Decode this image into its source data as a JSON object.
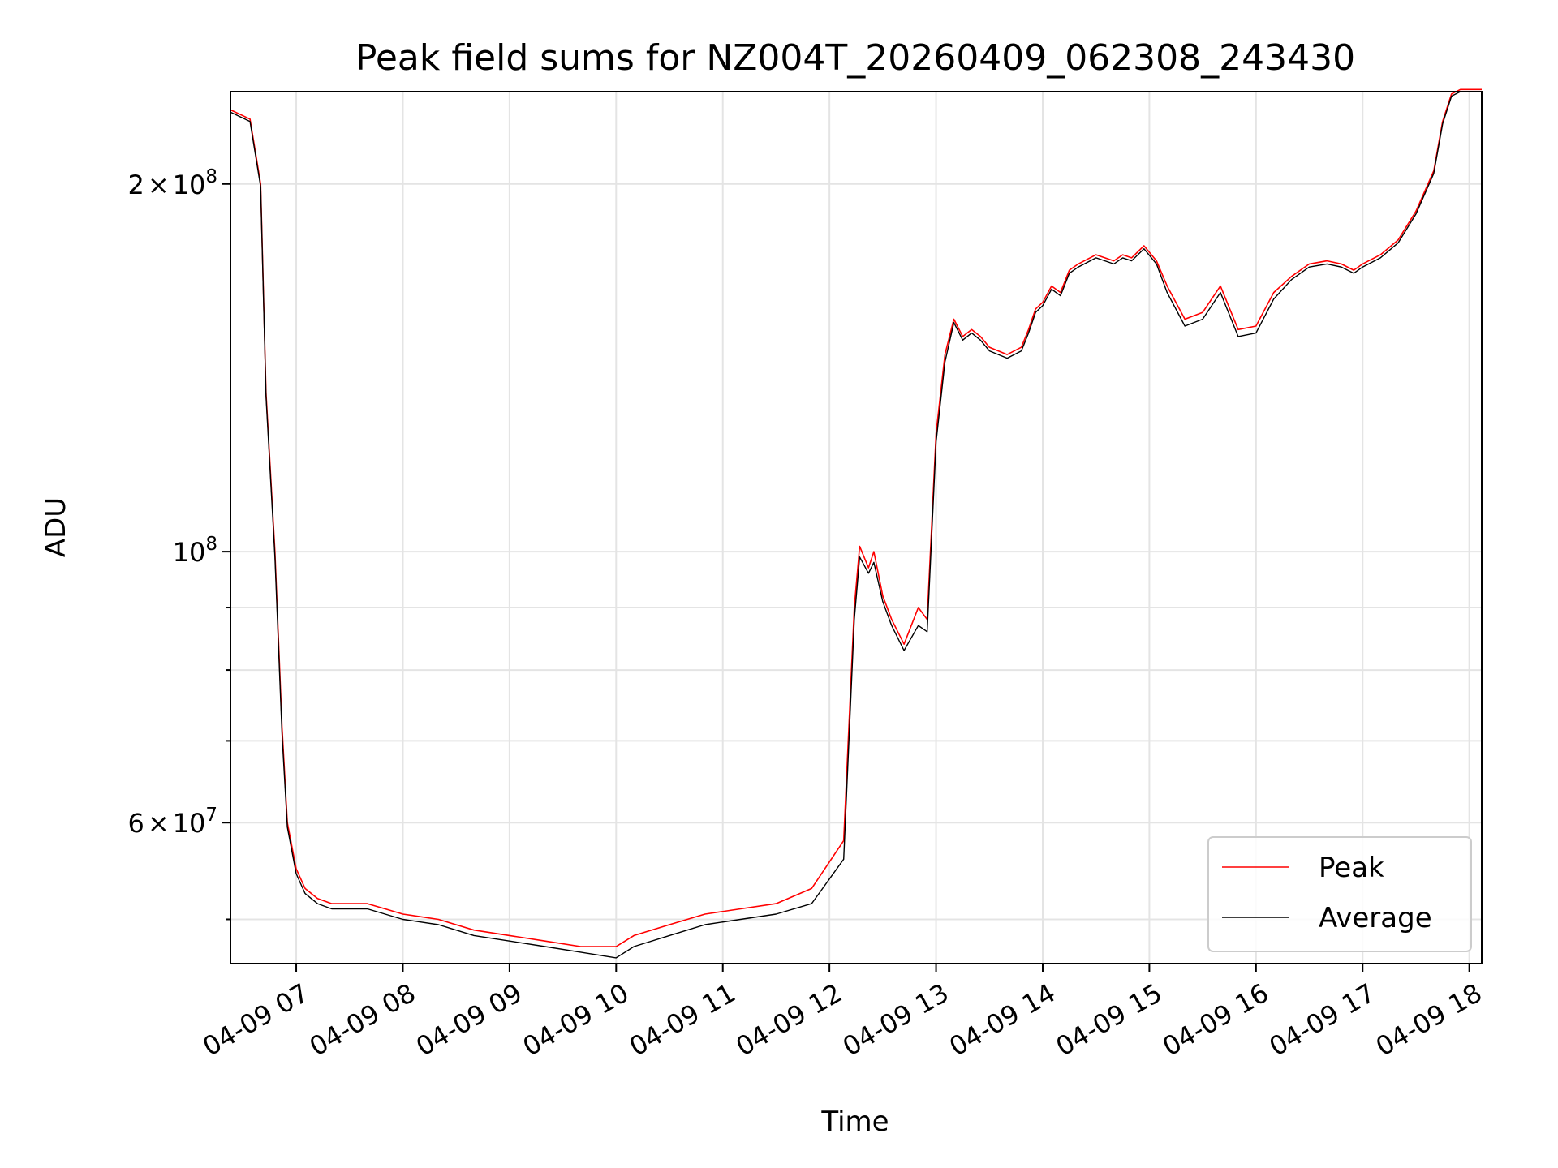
{
  "chart_data": {
    "type": "line",
    "title": "Peak field sums for NZ004T_20260409_062308_243430",
    "xlabel": "Time",
    "ylabel": "ADU",
    "y_scale": "log",
    "xlim": [
      "2026-04-09 06:23",
      "2026-04-09 18:07"
    ],
    "ylim": [
      46000000,
      238000000
    ],
    "grid": true,
    "legend_position": "lower-right",
    "x_ticks": [
      {
        "value": "2026-04-09 07:00",
        "label": "04-09 07"
      },
      {
        "value": "2026-04-09 08:00",
        "label": "04-09 08"
      },
      {
        "value": "2026-04-09 09:00",
        "label": "04-09 09"
      },
      {
        "value": "2026-04-09 10:00",
        "label": "04-09 10"
      },
      {
        "value": "2026-04-09 11:00",
        "label": "04-09 11"
      },
      {
        "value": "2026-04-09 12:00",
        "label": "04-09 12"
      },
      {
        "value": "2026-04-09 13:00",
        "label": "04-09 13"
      },
      {
        "value": "2026-04-09 14:00",
        "label": "04-09 14"
      },
      {
        "value": "2026-04-09 15:00",
        "label": "04-09 15"
      },
      {
        "value": "2026-04-09 16:00",
        "label": "04-09 16"
      },
      {
        "value": "2026-04-09 17:00",
        "label": "04-09 17"
      },
      {
        "value": "2026-04-09 18:00",
        "label": "04-09 18"
      }
    ],
    "y_major_ticks": [
      {
        "value": 60000000,
        "mantissa": "6",
        "times": "×",
        "base": "10",
        "exp": "7"
      },
      {
        "value": 100000000,
        "mantissa": "",
        "times": "",
        "base": "10",
        "exp": "8"
      },
      {
        "value": 200000000,
        "mantissa": "2",
        "times": "×",
        "base": "10",
        "exp": "8"
      }
    ],
    "y_minor_ticks": [
      50000000,
      70000000,
      80000000,
      90000000
    ],
    "series": [
      {
        "name": "Peak",
        "color": "#ff0000",
        "x": [
          "2026-04-09 06:23",
          "2026-04-09 06:34",
          "2026-04-09 06:40",
          "2026-04-09 06:43",
          "2026-04-09 06:48",
          "2026-04-09 06:52",
          "2026-04-09 06:55",
          "2026-04-09 07:00",
          "2026-04-09 07:05",
          "2026-04-09 07:12",
          "2026-04-09 07:20",
          "2026-04-09 07:30",
          "2026-04-09 07:40",
          "2026-04-09 07:50",
          "2026-04-09 08:00",
          "2026-04-09 08:20",
          "2026-04-09 08:40",
          "2026-04-09 09:00",
          "2026-04-09 09:20",
          "2026-04-09 09:40",
          "2026-04-09 10:00",
          "2026-04-09 10:10",
          "2026-04-09 10:30",
          "2026-04-09 10:50",
          "2026-04-09 11:10",
          "2026-04-09 11:30",
          "2026-04-09 11:50",
          "2026-04-09 12:08",
          "2026-04-09 12:14",
          "2026-04-09 12:17",
          "2026-04-09 12:22",
          "2026-04-09 12:25",
          "2026-04-09 12:30",
          "2026-04-09 12:35",
          "2026-04-09 12:42",
          "2026-04-09 12:50",
          "2026-04-09 12:55",
          "2026-04-09 13:00",
          "2026-04-09 13:05",
          "2026-04-09 13:10",
          "2026-04-09 13:15",
          "2026-04-09 13:20",
          "2026-04-09 13:25",
          "2026-04-09 13:30",
          "2026-04-09 13:40",
          "2026-04-09 13:48",
          "2026-04-09 13:52",
          "2026-04-09 13:56",
          "2026-04-09 14:00",
          "2026-04-09 14:05",
          "2026-04-09 14:10",
          "2026-04-09 14:15",
          "2026-04-09 14:20",
          "2026-04-09 14:30",
          "2026-04-09 14:40",
          "2026-04-09 14:45",
          "2026-04-09 14:50",
          "2026-04-09 14:57",
          "2026-04-09 15:04",
          "2026-04-09 15:10",
          "2026-04-09 15:20",
          "2026-04-09 15:30",
          "2026-04-09 15:40",
          "2026-04-09 15:50",
          "2026-04-09 16:00",
          "2026-04-09 16:10",
          "2026-04-09 16:20",
          "2026-04-09 16:30",
          "2026-04-09 16:40",
          "2026-04-09 16:48",
          "2026-04-09 16:55",
          "2026-04-09 17:00",
          "2026-04-09 17:10",
          "2026-04-09 17:20",
          "2026-04-09 17:30",
          "2026-04-09 17:40",
          "2026-04-09 17:45",
          "2026-04-09 17:50",
          "2026-04-09 17:55",
          "2026-04-09 18:00",
          "2026-04-09 18:07"
        ],
        "values": [
          230000000,
          226000000,
          200000000,
          135000000,
          100000000,
          72000000,
          60000000,
          55000000,
          53000000,
          52000000,
          51500000,
          51500000,
          51500000,
          51000000,
          50500000,
          50000000,
          49000000,
          48500000,
          48000000,
          47500000,
          47500000,
          48500000,
          49500000,
          50500000,
          51000000,
          51500000,
          53000000,
          58000000,
          90000000,
          101000000,
          97000000,
          100000000,
          92000000,
          88000000,
          84000000,
          90000000,
          88000000,
          125000000,
          145000000,
          155000000,
          150000000,
          152000000,
          150000000,
          147000000,
          145000000,
          147000000,
          152000000,
          158000000,
          160000000,
          165000000,
          163000000,
          170000000,
          172000000,
          175000000,
          173000000,
          175000000,
          174000000,
          178000000,
          173000000,
          165000000,
          155000000,
          157000000,
          165000000,
          152000000,
          153000000,
          163000000,
          168000000,
          172000000,
          173000000,
          172000000,
          170000000,
          172000000,
          175000000,
          180000000,
          190000000,
          205000000,
          225000000,
          237000000,
          239000000,
          239000000,
          239000000
        ]
      },
      {
        "name": "Average",
        "color": "#000000",
        "x": [
          "2026-04-09 06:23",
          "2026-04-09 06:34",
          "2026-04-09 06:40",
          "2026-04-09 06:43",
          "2026-04-09 06:48",
          "2026-04-09 06:52",
          "2026-04-09 06:55",
          "2026-04-09 07:00",
          "2026-04-09 07:05",
          "2026-04-09 07:12",
          "2026-04-09 07:20",
          "2026-04-09 07:30",
          "2026-04-09 07:40",
          "2026-04-09 07:50",
          "2026-04-09 08:00",
          "2026-04-09 08:20",
          "2026-04-09 08:40",
          "2026-04-09 09:00",
          "2026-04-09 09:20",
          "2026-04-09 09:40",
          "2026-04-09 10:00",
          "2026-04-09 10:10",
          "2026-04-09 10:30",
          "2026-04-09 10:50",
          "2026-04-09 11:10",
          "2026-04-09 11:30",
          "2026-04-09 11:50",
          "2026-04-09 12:08",
          "2026-04-09 12:14",
          "2026-04-09 12:17",
          "2026-04-09 12:22",
          "2026-04-09 12:25",
          "2026-04-09 12:30",
          "2026-04-09 12:35",
          "2026-04-09 12:42",
          "2026-04-09 12:50",
          "2026-04-09 12:55",
          "2026-04-09 13:00",
          "2026-04-09 13:05",
          "2026-04-09 13:10",
          "2026-04-09 13:15",
          "2026-04-09 13:20",
          "2026-04-09 13:25",
          "2026-04-09 13:30",
          "2026-04-09 13:40",
          "2026-04-09 13:48",
          "2026-04-09 13:52",
          "2026-04-09 13:56",
          "2026-04-09 14:00",
          "2026-04-09 14:05",
          "2026-04-09 14:10",
          "2026-04-09 14:15",
          "2026-04-09 14:20",
          "2026-04-09 14:30",
          "2026-04-09 14:40",
          "2026-04-09 14:45",
          "2026-04-09 14:50",
          "2026-04-09 14:57",
          "2026-04-09 15:04",
          "2026-04-09 15:10",
          "2026-04-09 15:20",
          "2026-04-09 15:30",
          "2026-04-09 15:40",
          "2026-04-09 15:50",
          "2026-04-09 16:00",
          "2026-04-09 16:10",
          "2026-04-09 16:20",
          "2026-04-09 16:30",
          "2026-04-09 16:40",
          "2026-04-09 16:48",
          "2026-04-09 16:55",
          "2026-04-09 17:00",
          "2026-04-09 17:10",
          "2026-04-09 17:20",
          "2026-04-09 17:30",
          "2026-04-09 17:40",
          "2026-04-09 17:45",
          "2026-04-09 17:50",
          "2026-04-09 17:55",
          "2026-04-09 18:00",
          "2026-04-09 18:07"
        ],
        "values": [
          229000000,
          225000000,
          199000000,
          134000000,
          99000000,
          71000000,
          59500000,
          54500000,
          52500000,
          51500000,
          51000000,
          51000000,
          51000000,
          50500000,
          50000000,
          49500000,
          48500000,
          48000000,
          47500000,
          47000000,
          46500000,
          47500000,
          48500000,
          49500000,
          50000000,
          50500000,
          51500000,
          56000000,
          88000000,
          99000000,
          96000000,
          98000000,
          91000000,
          87000000,
          83000000,
          87000000,
          86000000,
          123000000,
          143000000,
          154000000,
          149000000,
          151000000,
          149000000,
          146000000,
          144000000,
          146000000,
          151000000,
          157000000,
          159000000,
          164000000,
          162000000,
          169000000,
          171000000,
          174000000,
          172000000,
          174000000,
          173000000,
          177000000,
          172000000,
          163000000,
          153000000,
          155000000,
          163000000,
          150000000,
          151000000,
          161000000,
          167000000,
          171000000,
          172000000,
          171000000,
          169000000,
          171000000,
          174000000,
          179000000,
          189000000,
          204000000,
          224000000,
          236000000,
          238000000,
          238000000,
          238000000
        ]
      }
    ]
  }
}
